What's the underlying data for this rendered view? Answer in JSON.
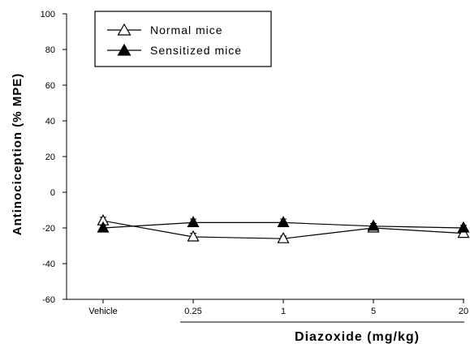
{
  "chart_data": {
    "type": "line",
    "title": "",
    "xlabel": "Diazoxide (mg/kg)",
    "ylabel": "Antinociception (% MPE)",
    "categories": [
      "Vehicle",
      "0.25",
      "1",
      "5",
      "20"
    ],
    "ylim": [
      -60,
      100
    ],
    "yticks": [
      -60,
      -40,
      -20,
      0,
      20,
      40,
      60,
      80,
      100
    ],
    "yticks_text": [
      "-60",
      "-40",
      "-20",
      "0",
      "20",
      "40",
      "60",
      "80",
      "100"
    ],
    "grid": false,
    "legend_position": "top-left",
    "series": [
      {
        "name": "Normal mice",
        "marker": "open-triangle",
        "values": [
          -16,
          -25,
          -26,
          -20,
          -23
        ],
        "errors": [
          2,
          2,
          1.5,
          1.5,
          1.5
        ]
      },
      {
        "name": "Sensitized mice",
        "marker": "filled-triangle",
        "values": [
          -20,
          -17,
          -17,
          -19,
          -20
        ],
        "errors": [
          1.5,
          2,
          2,
          1.5,
          1.5
        ]
      }
    ]
  }
}
